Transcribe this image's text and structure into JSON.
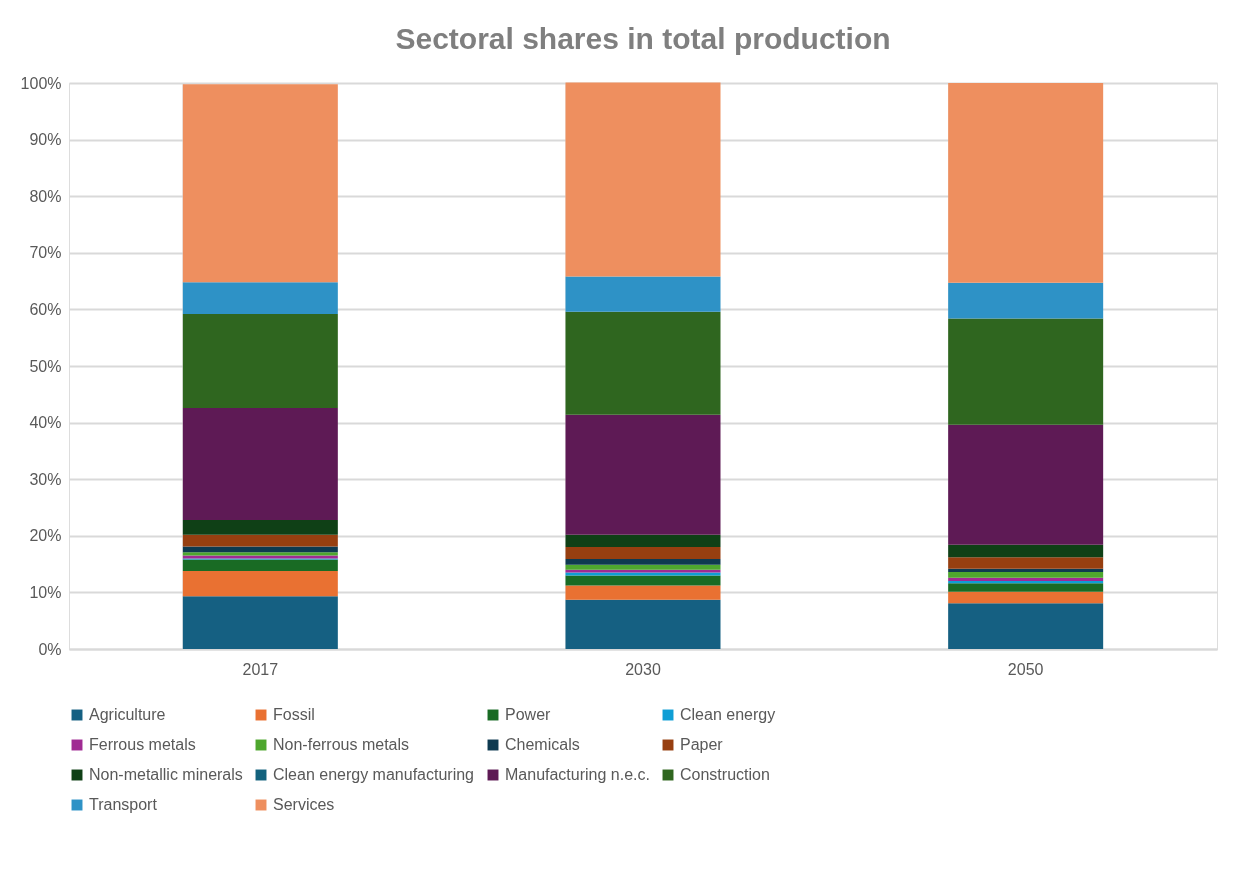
{
  "chart_data": {
    "type": "bar",
    "title": "Sectoral shares in total production",
    "categories": [
      "2017",
      "2030",
      "2050"
    ],
    "stacked": true,
    "grid": true,
    "legend": "bottom",
    "ylim": [
      0,
      100
    ],
    "yticks": [
      {
        "value": 0,
        "label": "0%"
      },
      {
        "value": 10,
        "label": "10%"
      },
      {
        "value": 20,
        "label": "20%"
      },
      {
        "value": 30,
        "label": "30%"
      },
      {
        "value": 40,
        "label": "40%"
      },
      {
        "value": 50,
        "label": "50%"
      },
      {
        "value": 60,
        "label": "60%"
      },
      {
        "value": 70,
        "label": "70%"
      },
      {
        "value": 80,
        "label": "80%"
      },
      {
        "value": 90,
        "label": "90%"
      },
      {
        "value": 100,
        "label": "100%"
      }
    ],
    "series": [
      {
        "name": "Agriculture",
        "color": "#156082",
        "values": [
          9.3,
          8.7,
          8.1
        ]
      },
      {
        "name": "Fossil",
        "color": "#e97132",
        "values": [
          4.5,
          2.5,
          2.0
        ]
      },
      {
        "name": "Power",
        "color": "#196b24",
        "values": [
          2.0,
          1.8,
          1.5
        ]
      },
      {
        "name": "Clean energy",
        "color": "#0f9ed5",
        "values": [
          0.2,
          0.5,
          0.4
        ]
      },
      {
        "name": "Ferrous metals",
        "color": "#a02b93",
        "values": [
          0.5,
          0.5,
          0.6
        ]
      },
      {
        "name": "Non-ferrous metals",
        "color": "#4ea72e",
        "values": [
          0.6,
          0.9,
          1.0
        ]
      },
      {
        "name": "Chemicals",
        "color": "#0e3a50",
        "values": [
          1.0,
          1.0,
          0.6
        ]
      },
      {
        "name": "Paper",
        "color": "#973f10",
        "values": [
          2.1,
          2.1,
          2.0
        ]
      },
      {
        "name": "Non-metallic minerals",
        "color": "#0f4016",
        "values": [
          2.6,
          2.2,
          2.2
        ]
      },
      {
        "name": "Clean energy manufacturing",
        "color": "#13627d",
        "values": [
          0.0,
          0.0,
          0.0
        ]
      },
      {
        "name": "Manufacturing n.e.c.",
        "color": "#5e1a55",
        "values": [
          19.8,
          21.2,
          21.2
        ]
      },
      {
        "name": "Construction",
        "color": "#2f661f",
        "values": [
          16.6,
          18.2,
          18.8
        ]
      },
      {
        "name": "Transport",
        "color": "#2e92c6",
        "values": [
          5.6,
          6.2,
          6.3
        ]
      },
      {
        "name": "Services",
        "color": "#ee8f5f",
        "values": [
          35.0,
          34.3,
          35.3
        ]
      }
    ]
  }
}
